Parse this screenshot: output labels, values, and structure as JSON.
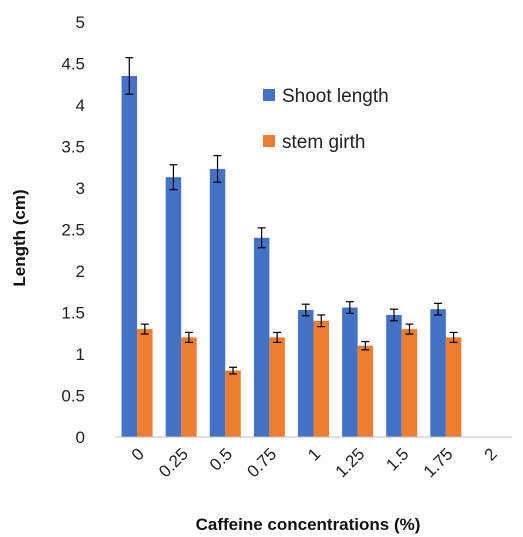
{
  "chart_data": {
    "type": "bar",
    "categories": [
      "0",
      "0.25",
      "0.5",
      "0.75",
      "1",
      "1.25",
      "1.5",
      "1.75",
      "2"
    ],
    "series": [
      {
        "name": "Shoot length",
        "color": "#4472C4",
        "values": [
          4.35,
          3.13,
          3.23,
          2.4,
          1.53,
          1.56,
          1.47,
          1.54,
          0
        ],
        "error": [
          0.22,
          0.15,
          0.16,
          0.12,
          0.07,
          0.07,
          0.07,
          0.07,
          0
        ]
      },
      {
        "name": "stem girth",
        "color": "#ED7D31",
        "values": [
          1.3,
          1.2,
          0.8,
          1.2,
          1.4,
          1.1,
          1.3,
          1.2,
          0
        ],
        "error": [
          0.06,
          0.06,
          0.04,
          0.06,
          0.07,
          0.05,
          0.06,
          0.06,
          0
        ]
      }
    ],
    "yticks": [
      "0",
      "0.5",
      "1",
      "1.5",
      "2",
      "2.5",
      "3",
      "3.5",
      "4",
      "4.5",
      "5"
    ],
    "ylim": [
      0,
      5
    ],
    "xlabel": "Caffeine concentrations (%)",
    "ylabel": "Length (cm)",
    "legend_position": "top-right",
    "grid": false
  }
}
